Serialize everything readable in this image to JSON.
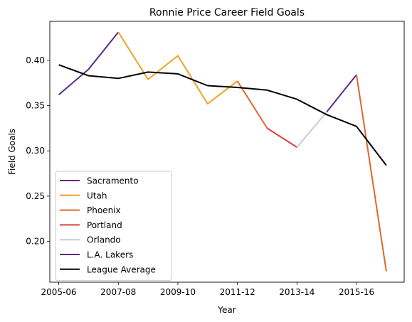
{
  "chart_data": {
    "type": "line",
    "title": "Ronnie Price Career Field Goals",
    "xlabel": "Year",
    "ylabel": "Field Goals",
    "x_ticks": [
      "2005-06",
      "2007-08",
      "2009-10",
      "2011-12",
      "2013-14",
      "2015-16"
    ],
    "xlim": [
      -0.3,
      11.6
    ],
    "ylim": [
      0.155,
      0.443
    ],
    "y_ticks": [
      "0.20",
      "0.25",
      "0.30",
      "0.35",
      "0.40"
    ],
    "legend_position": "lower-left",
    "series": [
      {
        "name": "Sacramento",
        "color": "#5b2c83",
        "x": [
          0,
          1,
          2
        ],
        "values": [
          0.362,
          0.39,
          0.431
        ]
      },
      {
        "name": "Utah",
        "color": "#f4a024",
        "x": [
          2,
          3,
          4,
          5,
          6
        ],
        "values": [
          0.431,
          0.379,
          0.405,
          0.352,
          0.377
        ]
      },
      {
        "name": "Phoenix",
        "color": "#e2662d",
        "x": [
          6,
          7
        ],
        "values": [
          0.377,
          0.325
        ]
      },
      {
        "name": "Portland",
        "color": "#d9403b",
        "x": [
          7,
          8
        ],
        "values": [
          0.325,
          0.304
        ]
      },
      {
        "name": "Orlando",
        "color": "#c4ced4",
        "x": [
          8,
          9
        ],
        "values": [
          0.304,
          0.343
        ]
      },
      {
        "name": "L.A. Lakers",
        "color": "#5b2c83",
        "x": [
          9,
          10
        ],
        "values": [
          0.343,
          0.384
        ]
      },
      {
        "name": "Phoenix",
        "color": "#e2662d",
        "x": [
          10,
          11
        ],
        "values": [
          0.384,
          0.167
        ],
        "legend": false
      },
      {
        "name": "League Average",
        "color": "#000000",
        "x": [
          0,
          1,
          2,
          3,
          4,
          5,
          6,
          7,
          8,
          9,
          10,
          11
        ],
        "values": [
          0.395,
          0.383,
          0.38,
          0.387,
          0.385,
          0.372,
          0.37,
          0.367,
          0.357,
          0.34,
          0.327,
          0.284
        ]
      }
    ]
  }
}
